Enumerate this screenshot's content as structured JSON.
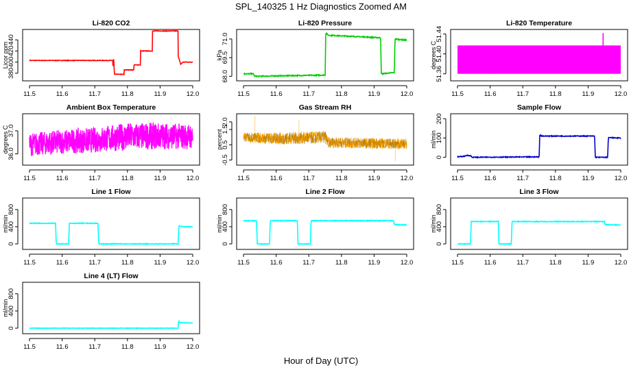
{
  "title": "SPL_140325  1 Hz Diagnostics Zoomed AM",
  "xlabel": "Hour of Day (UTC)",
  "chart_data": [
    {
      "type": "line",
      "title": "Li-820 CO2",
      "ylabel": "Licor ppm",
      "color": "#ff0000",
      "xlim": [
        11.5,
        12.0
      ],
      "xticks": [
        11.5,
        11.6,
        11.7,
        11.8,
        11.9,
        12.0
      ],
      "ylim": [
        370,
        455
      ],
      "yticks": [
        380,
        400,
        420,
        440
      ],
      "noise": 0.5,
      "x": [
        11.5,
        11.755,
        11.756,
        11.758,
        11.76,
        11.79,
        11.79,
        11.82,
        11.82,
        11.84,
        11.84,
        11.876,
        11.876,
        11.955,
        11.955,
        11.962,
        11.963,
        11.97,
        12.0
      ],
      "y": [
        403,
        403,
        390,
        408,
        378,
        378,
        386,
        386,
        395,
        395,
        420,
        420,
        456,
        456,
        412,
        398,
        396,
        400,
        400
      ]
    },
    {
      "type": "line",
      "title": "Li-820 Pressure",
      "ylabel": "kPa",
      "color": "#00cc00",
      "xlim": [
        11.5,
        12.0
      ],
      "xticks": [
        11.5,
        11.6,
        11.7,
        11.8,
        11.9,
        12.0
      ],
      "ylim": [
        67.8,
        71.6
      ],
      "yticks": [
        68.0,
        69.5,
        71.0
      ],
      "ytickfmt": "1",
      "noise": 0.04,
      "x": [
        11.5,
        11.51,
        11.53,
        11.535,
        11.75,
        11.752,
        11.76,
        11.92,
        11.922,
        11.962,
        11.964,
        12.0
      ],
      "y": [
        68.2,
        68.2,
        68.2,
        68.0,
        68.1,
        71.5,
        71.3,
        71.1,
        68.2,
        68.3,
        71.0,
        70.9
      ]
    },
    {
      "type": "band",
      "title": "Li-820 Temperature",
      "ylabel": "degrees C",
      "color": "#ff00ff",
      "xlim": [
        11.5,
        12.0
      ],
      "xticks": [
        11.5,
        11.6,
        11.7,
        11.8,
        11.9,
        12.0
      ],
      "ylim": [
        51.35,
        51.445
      ],
      "yticks": [
        51.36,
        51.4,
        51.44
      ],
      "ytickfmt": "2",
      "band_x": [
        11.5,
        12.0
      ],
      "band_low": 51.36,
      "band_high": 51.417,
      "spikes": [
        {
          "x": 11.61,
          "low": 51.36,
          "high": 51.38
        },
        {
          "x": 11.946,
          "low": 51.41,
          "high": 51.442
        }
      ]
    },
    {
      "type": "noise",
      "title": "Ambient Box Temperature",
      "ylabel": "degrees C",
      "color": "#ff00ff",
      "xlim": [
        11.5,
        12.0
      ],
      "xticks": [
        11.5,
        11.6,
        11.7,
        11.8,
        11.9,
        12.0
      ],
      "ylim": [
        35.6,
        37.65
      ],
      "yticks": [
        36.0,
        37.0
      ],
      "ytickfmt": "1",
      "x": [
        11.5,
        11.6,
        11.7,
        11.8,
        11.9,
        12.0
      ],
      "lower": [
        35.9,
        36.0,
        36.05,
        36.15,
        36.2,
        36.2
      ],
      "upper": [
        36.9,
        37.05,
        37.15,
        37.35,
        37.35,
        37.3
      ]
    },
    {
      "type": "noise",
      "title": "Gas Stream RH",
      "ylabel": "percent",
      "color": "#ffa500",
      "xlim": [
        11.5,
        12.0
      ],
      "xticks": [
        11.5,
        11.6,
        11.7,
        11.8,
        11.9,
        12.0
      ],
      "ylim": [
        -0.7,
        2.4
      ],
      "yticks": [
        -0.5,
        0.5,
        1.5,
        2.0
      ],
      "ytickfmt": "1",
      "hatch": true,
      "x": [
        11.5,
        11.6,
        11.75,
        11.76,
        12.0
      ],
      "lower": [
        0.7,
        0.5,
        0.6,
        0.3,
        0.2
      ],
      "upper": [
        1.3,
        1.3,
        1.4,
        1.0,
        0.9
      ]
    },
    {
      "type": "line",
      "title": "Sample Flow",
      "ylabel": "ml/min",
      "color": "#0000cc",
      "xlim": [
        11.5,
        12.0
      ],
      "xticks": [
        11.5,
        11.6,
        11.7,
        11.8,
        11.9,
        12.0
      ],
      "ylim": [
        -30,
        215
      ],
      "yticks": [
        0,
        100,
        200
      ],
      "noise": 2,
      "x": [
        11.5,
        11.52,
        11.53,
        11.54,
        11.545,
        11.75,
        11.752,
        11.76,
        11.92,
        11.922,
        11.96,
        11.962,
        12.0
      ],
      "y": [
        2,
        5,
        10,
        8,
        0,
        2,
        115,
        110,
        110,
        0,
        0,
        102,
        100
      ]
    },
    {
      "type": "line",
      "title": "Line 1 Flow",
      "ylabel": "ml/min",
      "color": "#00ffff",
      "xlim": [
        11.5,
        12.0
      ],
      "xticks": [
        11.5,
        11.6,
        11.7,
        11.8,
        11.9,
        12.0
      ],
      "ylim": [
        -80,
        1020
      ],
      "yticks": [
        0,
        400,
        800
      ],
      "noise": 8,
      "x": [
        11.5,
        11.58,
        11.582,
        11.62,
        11.622,
        11.71,
        11.712,
        11.955,
        11.958,
        11.97,
        12.0
      ],
      "y": [
        480,
        480,
        0,
        0,
        480,
        480,
        0,
        0,
        420,
        400,
        400
      ]
    },
    {
      "type": "line",
      "title": "Line 2 Flow",
      "ylabel": "ml/min",
      "color": "#00ffff",
      "xlim": [
        11.5,
        12.0
      ],
      "xticks": [
        11.5,
        11.6,
        11.7,
        11.8,
        11.9,
        12.0
      ],
      "ylim": [
        -80,
        1020
      ],
      "yticks": [
        0,
        400,
        800
      ],
      "noise": 8,
      "x": [
        11.5,
        11.54,
        11.542,
        11.58,
        11.582,
        11.665,
        11.667,
        11.705,
        11.707,
        11.96,
        11.962,
        12.0
      ],
      "y": [
        540,
        540,
        0,
        0,
        540,
        540,
        0,
        0,
        540,
        540,
        450,
        440
      ]
    },
    {
      "type": "line",
      "title": "Line 3 Flow",
      "ylabel": "ml/min",
      "color": "#00ffff",
      "xlim": [
        11.5,
        12.0
      ],
      "xticks": [
        11.5,
        11.6,
        11.7,
        11.8,
        11.9,
        12.0
      ],
      "ylim": [
        -80,
        1020
      ],
      "yticks": [
        0,
        400,
        800
      ],
      "noise": 8,
      "x": [
        11.5,
        11.54,
        11.542,
        11.625,
        11.627,
        11.665,
        11.667,
        11.95,
        11.952,
        12.0
      ],
      "y": [
        0,
        0,
        520,
        520,
        0,
        0,
        520,
        520,
        450,
        440
      ]
    },
    {
      "type": "line",
      "title": "Line 4 (LT) Flow",
      "ylabel": "ml/min",
      "color": "#00ffff",
      "xlim": [
        11.5,
        12.0
      ],
      "xticks": [
        11.5,
        11.6,
        11.7,
        11.8,
        11.9,
        12.0
      ],
      "ylim": [
        -80,
        1020
      ],
      "yticks": [
        0,
        400,
        800
      ],
      "noise": 6,
      "x": [
        11.5,
        11.955,
        11.957,
        11.96,
        12.0
      ],
      "y": [
        0,
        0,
        180,
        130,
        120
      ]
    }
  ]
}
